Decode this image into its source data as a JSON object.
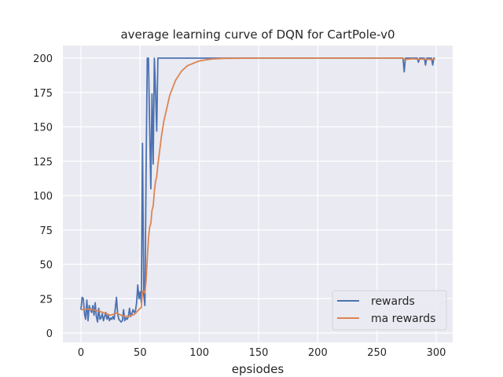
{
  "chart_data": {
    "type": "line",
    "title": "average learning curve of DQN for CartPole-v0",
    "xlabel": "epsiodes",
    "ylabel": "",
    "xlim": [
      -15,
      315
    ],
    "ylim": [
      -2,
      210
    ],
    "xticks": [
      0,
      50,
      100,
      150,
      200,
      250,
      300
    ],
    "yticks": [
      0,
      25,
      50,
      75,
      100,
      125,
      150,
      175,
      200
    ],
    "grid": true,
    "legend_position": "lower-right",
    "series": [
      {
        "name": "rewards",
        "color": "#4c72b0",
        "points": [
          [
            0,
            17
          ],
          [
            1,
            26
          ],
          [
            2,
            25
          ],
          [
            3,
            14
          ],
          [
            4,
            10
          ],
          [
            5,
            24
          ],
          [
            6,
            9
          ],
          [
            7,
            20
          ],
          [
            8,
            17
          ],
          [
            9,
            15
          ],
          [
            10,
            20
          ],
          [
            11,
            13
          ],
          [
            12,
            22
          ],
          [
            13,
            12
          ],
          [
            14,
            8
          ],
          [
            15,
            18
          ],
          [
            16,
            10
          ],
          [
            17,
            11
          ],
          [
            18,
            14
          ],
          [
            19,
            9
          ],
          [
            20,
            12
          ],
          [
            21,
            15
          ],
          [
            22,
            10
          ],
          [
            23,
            13
          ],
          [
            24,
            9
          ],
          [
            25,
            11
          ],
          [
            26,
            10
          ],
          [
            27,
            12
          ],
          [
            28,
            10
          ],
          [
            29,
            18
          ],
          [
            30,
            26
          ],
          [
            31,
            14
          ],
          [
            32,
            10
          ],
          [
            33,
            9
          ],
          [
            34,
            8
          ],
          [
            35,
            9
          ],
          [
            36,
            17
          ],
          [
            37,
            9
          ],
          [
            38,
            11
          ],
          [
            39,
            10
          ],
          [
            40,
            12
          ],
          [
            41,
            18
          ],
          [
            42,
            12
          ],
          [
            43,
            14
          ],
          [
            44,
            17
          ],
          [
            45,
            15
          ],
          [
            46,
            16
          ],
          [
            47,
            22
          ],
          [
            48,
            35
          ],
          [
            49,
            25
          ],
          [
            50,
            30
          ],
          [
            51,
            22
          ],
          [
            52,
            138
          ],
          [
            53,
            28
          ],
          [
            54,
            20
          ],
          [
            55,
            120
          ],
          [
            56,
            200
          ],
          [
            57,
            200
          ],
          [
            58,
            150
          ],
          [
            59,
            105
          ],
          [
            60,
            174
          ],
          [
            61,
            123
          ],
          [
            62,
            200
          ],
          [
            63,
            176
          ],
          [
            64,
            147
          ],
          [
            65,
            200
          ],
          [
            272,
            200
          ],
          [
            273,
            190
          ],
          [
            274,
            200
          ],
          [
            284,
            200
          ],
          [
            285,
            197
          ],
          [
            286,
            200
          ],
          [
            290,
            200
          ],
          [
            291,
            195
          ],
          [
            292,
            200
          ],
          [
            296,
            200
          ],
          [
            297,
            195
          ],
          [
            298,
            200
          ],
          [
            299,
            200
          ]
        ]
      },
      {
        "name": "ma rewards",
        "color": "#dd8452",
        "points": [
          [
            0,
            17
          ],
          [
            5,
            17.5
          ],
          [
            10,
            17
          ],
          [
            15,
            16
          ],
          [
            20,
            14.5
          ],
          [
            25,
            13
          ],
          [
            30,
            14.5
          ],
          [
            35,
            12.5
          ],
          [
            40,
            12
          ],
          [
            45,
            13.5
          ],
          [
            50,
            18
          ],
          [
            51,
            18.4
          ],
          [
            52,
            30.4
          ],
          [
            53,
            30.1
          ],
          [
            54,
            29.1
          ],
          [
            55,
            38.2
          ],
          [
            56,
            54.4
          ],
          [
            57,
            69
          ],
          [
            58,
            77
          ],
          [
            59,
            79.7
          ],
          [
            60,
            89.2
          ],
          [
            61,
            92.3
          ],
          [
            62,
            103
          ],
          [
            63,
            110.3
          ],
          [
            64,
            113.8
          ],
          [
            65,
            122.4
          ],
          [
            68,
            143.4
          ],
          [
            70,
            154.2
          ],
          [
            75,
            173
          ],
          [
            80,
            184
          ],
          [
            85,
            190.6
          ],
          [
            90,
            194.5
          ],
          [
            100,
            198
          ],
          [
            110,
            199.3
          ],
          [
            120,
            199.8
          ],
          [
            150,
            200
          ],
          [
            272,
            200
          ],
          [
            273,
            199
          ],
          [
            280,
            199.5
          ],
          [
            285,
            199.2
          ],
          [
            290,
            199.3
          ],
          [
            295,
            199
          ],
          [
            299,
            199.3
          ]
        ]
      }
    ]
  }
}
